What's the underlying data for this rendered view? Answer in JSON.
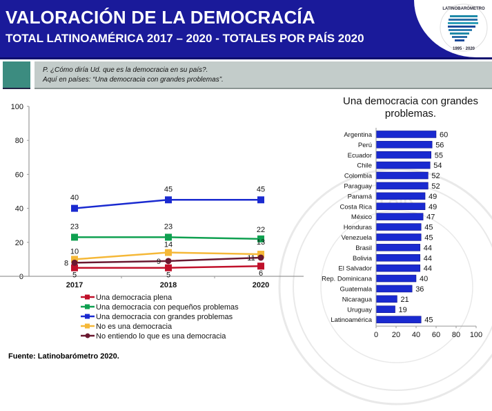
{
  "header": {
    "title": "VALORACIÓN DE LA DEMOCRACÍA",
    "subtitle": "TOTAL LATINOAMÉRICA 2017 – 2020 - TOTALES POR PAÍS 2020",
    "logo": {
      "name": "latinobarometro-logo",
      "text": "LATINOBARÓMETRO",
      "years": "1995 · 2020"
    }
  },
  "question": {
    "line1": "P. ¿Cómo diría Ud. que es la democracia en su país?.",
    "line2": "Aquí en países: “Una democracia con grandes problemas”."
  },
  "source": "Fuente: Latinobarómetro 2020.",
  "chart_data": [
    {
      "type": "line",
      "title": "",
      "xlabel": "",
      "ylabel": "",
      "x": [
        "2017",
        "2018",
        "2020"
      ],
      "ylim": [
        0,
        100
      ],
      "yticks": [
        0,
        20,
        40,
        60,
        80,
        100
      ],
      "grid": false,
      "legend_position": "bottom",
      "series": [
        {
          "name": "Una democracia plena",
          "values": [
            5,
            5,
            6
          ],
          "color": "#c0102a",
          "marker": "square"
        },
        {
          "name": "Una democracia con pequeños problemas",
          "values": [
            23,
            23,
            22
          ],
          "color": "#0fa050",
          "marker": "square"
        },
        {
          "name": "Una democracia con grandes problemas",
          "values": [
            40,
            45,
            45
          ],
          "color": "#1a2ad0",
          "marker": "square"
        },
        {
          "name": "No es una democracia",
          "values": [
            10,
            14,
            13
          ],
          "color": "#f5b838",
          "marker": "square"
        },
        {
          "name": "No entiendo lo que es una democracia",
          "values": [
            8,
            9,
            11
          ],
          "color": "#6a1830",
          "marker": "circle"
        }
      ]
    },
    {
      "type": "bar",
      "orientation": "horizontal",
      "title": "Una democracia con grandes problemas.",
      "xlabel": "",
      "ylabel": "",
      "xlim": [
        0,
        100
      ],
      "xticks": [
        0,
        20,
        40,
        60,
        80,
        100
      ],
      "color": "#1a2ad0",
      "categories": [
        "Argentina",
        "Perú",
        "Ecuador",
        "Chile",
        "Colombia",
        "Paraguay",
        "Panamá",
        "Costa Rica",
        "México",
        "Honduras",
        "Venezuela",
        "Brasil",
        "Bolivia",
        "El Salvador",
        "Rep. Dominicana",
        "Guatemala",
        "Nicaragua",
        "Uruguay",
        "Latinoamérica"
      ],
      "values": [
        60,
        56,
        55,
        54,
        52,
        52,
        49,
        49,
        47,
        45,
        45,
        44,
        44,
        44,
        40,
        36,
        21,
        19,
        45
      ]
    }
  ]
}
